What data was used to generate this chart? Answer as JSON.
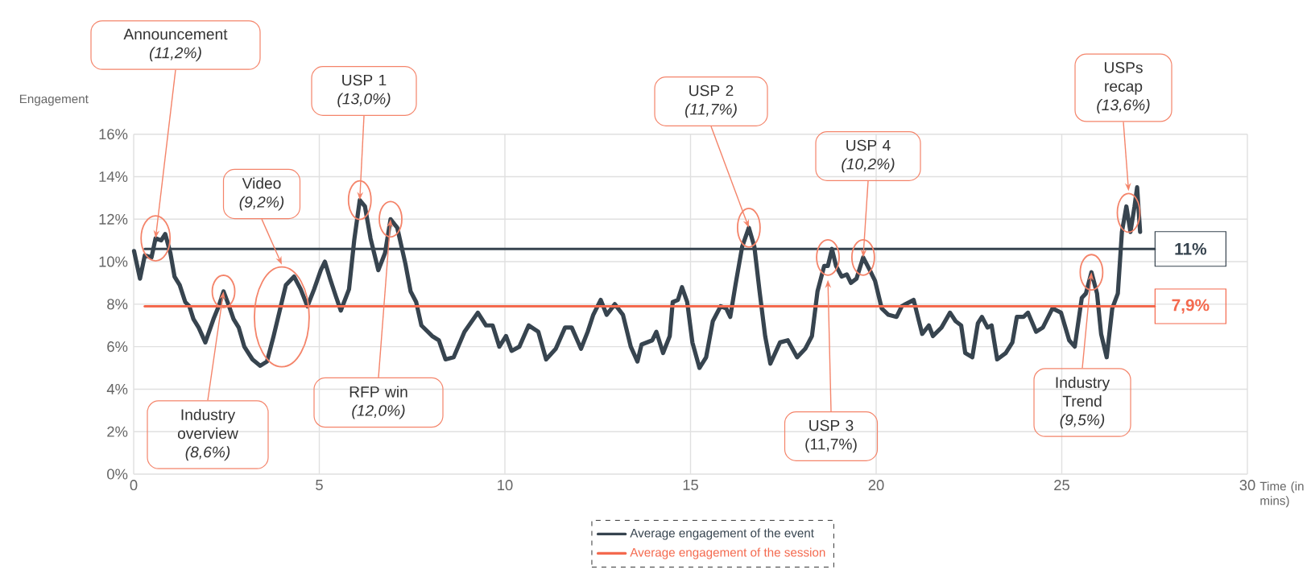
{
  "chart_data": {
    "type": "line",
    "xlabel": "Time (in mins)",
    "ylabel": "Engagement",
    "xlim": [
      0,
      30
    ],
    "ylim": [
      0,
      16
    ],
    "xticks": [
      0,
      5,
      10,
      15,
      20,
      25,
      30
    ],
    "yticks": [
      {
        "value": 0,
        "label": "0%"
      },
      {
        "value": 2,
        "label": "2%"
      },
      {
        "value": 4,
        "label": "4%"
      },
      {
        "value": 6,
        "label": "6%"
      },
      {
        "value": 8,
        "label": "8%"
      },
      {
        "value": 10,
        "label": "10%"
      },
      {
        "value": 12,
        "label": "12%"
      },
      {
        "value": 14,
        "label": "14%"
      },
      {
        "value": 16,
        "label": "16%"
      }
    ],
    "grid": true,
    "legend": "bottom",
    "series": [
      {
        "color": "#37444f",
        "x": [
          0.01,
          0.17,
          0.3,
          0.48,
          0.59,
          0.74,
          0.85,
          0.99,
          1.1,
          1.24,
          1.39,
          1.5,
          1.61,
          1.75,
          1.93,
          2.15,
          2.29,
          2.42,
          2.55,
          2.69,
          2.83,
          2.98,
          3.2,
          3.41,
          3.59,
          3.77,
          3.99,
          4.1,
          4.32,
          4.5,
          4.68,
          4.86,
          5.04,
          5.15,
          5.29,
          5.44,
          5.58,
          5.8,
          5.94,
          6.09,
          6.23,
          6.38,
          6.59,
          6.77,
          6.92,
          7.1,
          7.32,
          7.46,
          7.61,
          7.75,
          8.04,
          8.22,
          8.4,
          8.62,
          8.91,
          9.27,
          9.49,
          9.67,
          9.85,
          10.03,
          10.18,
          10.39,
          10.64,
          10.9,
          11.11,
          11.37,
          11.62,
          11.8,
          12.05,
          12.23,
          12.38,
          12.58,
          12.74,
          12.96,
          13.18,
          13.39,
          13.57,
          13.68,
          13.97,
          14.08,
          14.26,
          14.44,
          14.52,
          14.66,
          14.77,
          14.91,
          15.05,
          15.24,
          15.42,
          15.6,
          15.81,
          15.96,
          16.07,
          16.21,
          16.39,
          16.57,
          16.72,
          16.86,
          17.01,
          17.15,
          17.41,
          17.62,
          17.87,
          18.09,
          18.27,
          18.42,
          18.6,
          18.7,
          18.81,
          18.92,
          19.07,
          19.21,
          19.32,
          19.47,
          19.65,
          19.83,
          19.97,
          20.15,
          20.33,
          20.55,
          20.69,
          20.79,
          21.01,
          21.24,
          21.42,
          21.53,
          21.76,
          21.99,
          22.14,
          22.29,
          22.4,
          22.59,
          22.74,
          22.85,
          23.0,
          23.11,
          23.26,
          23.49,
          23.67,
          23.79,
          23.97,
          24.09,
          24.31,
          24.49,
          24.75,
          24.98,
          25.2,
          25.35,
          25.54,
          25.65,
          25.8,
          25.95,
          26.06,
          26.21,
          26.36,
          26.51,
          26.62,
          26.74,
          26.85,
          26.96,
          27.03,
          27.11
        ],
        "values": [
          10.5,
          9.2,
          10.3,
          10.2,
          11.1,
          11.0,
          11.3,
          10.4,
          9.3,
          8.9,
          8.1,
          7.9,
          7.3,
          6.9,
          6.2,
          7.3,
          7.9,
          8.6,
          8.0,
          7.3,
          6.9,
          6.0,
          5.4,
          5.1,
          5.3,
          6.5,
          8.1,
          8.9,
          9.3,
          8.7,
          7.9,
          8.7,
          9.6,
          10.0,
          9.2,
          8.4,
          7.7,
          8.7,
          11.0,
          12.9,
          12.6,
          11.1,
          9.6,
          10.4,
          12.0,
          11.6,
          9.9,
          8.6,
          8.1,
          7.0,
          6.5,
          6.3,
          5.4,
          5.5,
          6.7,
          7.6,
          7.0,
          7.0,
          6.0,
          6.5,
          5.8,
          6.0,
          7.0,
          6.7,
          5.4,
          5.9,
          6.9,
          6.9,
          5.9,
          6.7,
          7.5,
          8.2,
          7.5,
          8.0,
          7.5,
          6.0,
          5.3,
          6.1,
          6.3,
          6.7,
          5.7,
          6.5,
          8.1,
          8.2,
          8.8,
          8.1,
          6.2,
          5.0,
          5.5,
          7.2,
          7.9,
          7.8,
          7.4,
          8.9,
          10.7,
          11.6,
          10.7,
          8.6,
          6.5,
          5.2,
          6.2,
          6.3,
          5.5,
          5.9,
          6.5,
          8.6,
          9.8,
          9.8,
          10.6,
          9.8,
          9.3,
          9.4,
          9.0,
          9.2,
          10.2,
          9.6,
          9.1,
          7.8,
          7.5,
          7.4,
          7.9,
          8.0,
          8.2,
          6.6,
          7.0,
          6.5,
          6.9,
          7.6,
          7.2,
          7.0,
          5.7,
          5.5,
          7.1,
          7.4,
          6.9,
          7.0,
          5.4,
          5.7,
          6.2,
          7.4,
          7.4,
          7.6,
          6.7,
          6.9,
          7.8,
          7.6,
          6.3,
          6.0,
          8.3,
          8.5,
          9.5,
          8.5,
          6.6,
          5.5,
          7.8,
          8.5,
          11.4,
          12.6,
          11.4,
          12.6,
          13.5,
          11.4
        ]
      },
      {
        "name": "Average engagement of the event",
        "color": "#37444f",
        "x": [
          0.3,
          27.5
        ],
        "values": [
          10.6,
          10.6
        ]
      },
      {
        "name": "Average engagement of the session",
        "color": "#f4694e",
        "x": [
          0.3,
          27.5
        ],
        "values": [
          7.9,
          7.9
        ]
      }
    ],
    "annotations": [
      {
        "text": "Announcement *(11,2%)*",
        "x": 0.59,
        "y": 11.1
      },
      {
        "text": "USP 1 *(13,0%)*",
        "x": 6.09,
        "y": 12.9
      },
      "Video *(9,2%)*",
      {
        "text": "Industry overview *(8,6%)*",
        "x": 2.42,
        "y": 8.6
      },
      {
        "text": "RFP win *(12,0%)*",
        "x": 6.92,
        "y": 12.0
      },
      {
        "text": "USP 2 *(11,7%)*",
        "x": 16.57,
        "y": 11.6
      },
      {
        "text": "USP 4 *(10,2%)*",
        "x": 19.65,
        "y": 10.2
      },
      "USP 3 (11,7%)",
      {
        "text": "Industry Trend *(9,5%)*",
        "x": 25.8,
        "y": 9.5
      },
      "USPs recap *(13,6%)*",
      {
        "text": "**11%**",
        "x": 27.5,
        "y": 10.6
      },
      {
        "text": "**7,9%**",
        "x": 27.5,
        "y": 7.9
      }
    ]
  }
}
